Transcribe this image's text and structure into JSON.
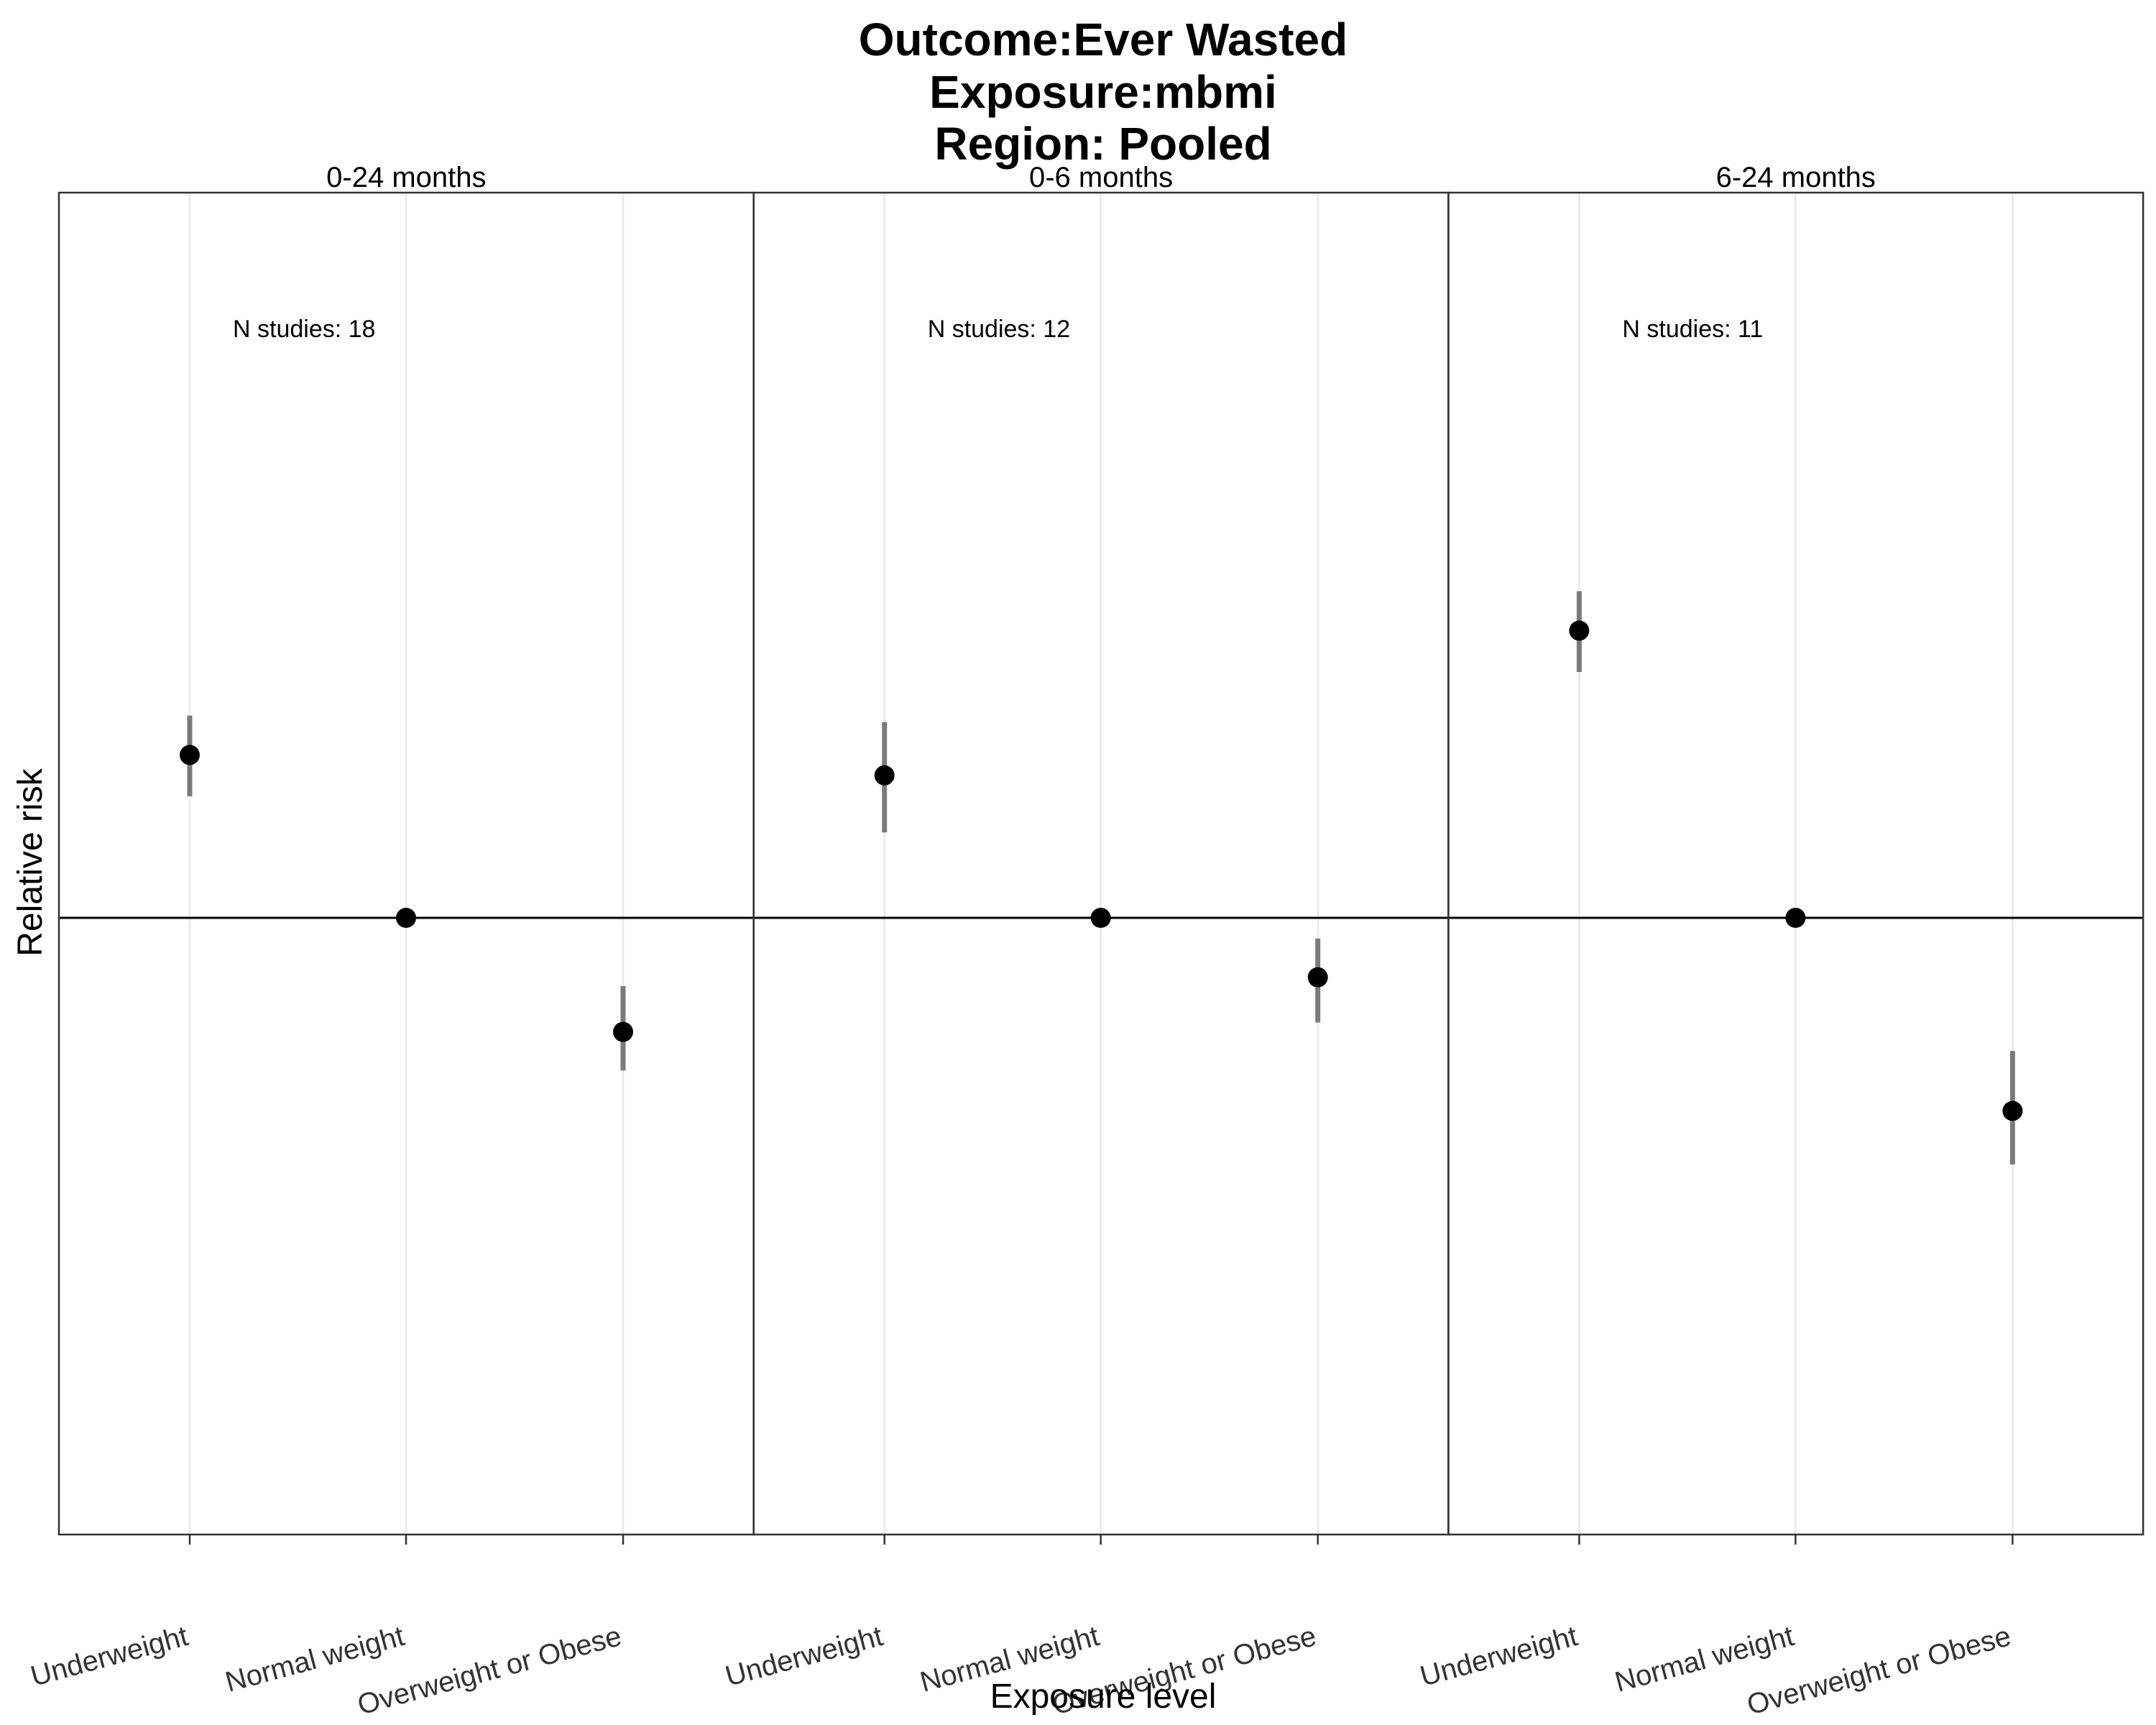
{
  "chart_data": {
    "type": "scatter",
    "title_lines": [
      "Outcome:Ever Wasted",
      "Exposure:mbmi",
      "Region: Pooled"
    ],
    "xlabel": "Exposure level",
    "ylabel": "Relative risk",
    "categories": [
      "Underweight",
      "Normal weight",
      "Overweight or Obese"
    ],
    "reference_value": 1.0,
    "ylim": [
      0.7,
      1.55
    ],
    "log_scale": true,
    "grid": "vertical",
    "y_ticks_shown": false,
    "panels": [
      {
        "label": "0-24 months",
        "annotation": "N studies: 18",
        "points": [
          {
            "category": "Underweight",
            "rr": 1.22,
            "ci_low": 1.16,
            "ci_high": 1.28
          },
          {
            "category": "Normal weight",
            "rr": 1.0,
            "ci_low": 1.0,
            "ci_high": 1.0
          },
          {
            "category": "Overweight or Obese",
            "rr": 0.87,
            "ci_low": 0.83,
            "ci_high": 0.92
          }
        ]
      },
      {
        "label": "0-6 months",
        "annotation": "N studies: 12",
        "points": [
          {
            "category": "Underweight",
            "rr": 1.19,
            "ci_low": 1.11,
            "ci_high": 1.27
          },
          {
            "category": "Normal weight",
            "rr": 1.0,
            "ci_low": 1.0,
            "ci_high": 1.0
          },
          {
            "category": "Overweight or Obese",
            "rr": 0.93,
            "ci_low": 0.88,
            "ci_high": 0.975
          }
        ]
      },
      {
        "label": "6-24 months",
        "annotation": "N studies: 11",
        "points": [
          {
            "category": "Underweight",
            "rr": 1.42,
            "ci_low": 1.35,
            "ci_high": 1.49
          },
          {
            "category": "Normal weight",
            "rr": 1.0,
            "ci_low": 1.0,
            "ci_high": 1.0
          },
          {
            "category": "Overweight or Obese",
            "rr": 0.79,
            "ci_low": 0.74,
            "ci_high": 0.85
          }
        ]
      }
    ]
  }
}
